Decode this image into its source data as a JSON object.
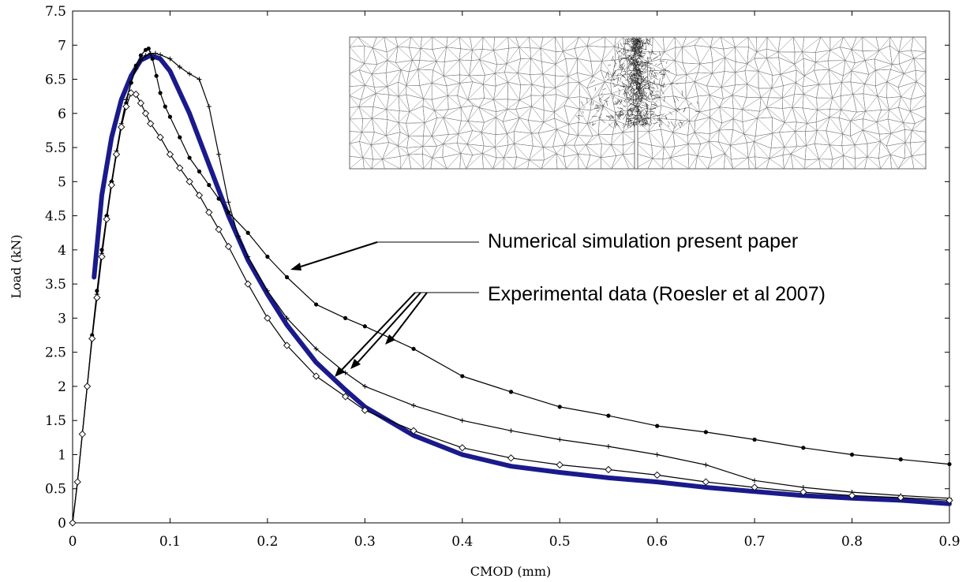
{
  "chart_data": {
    "type": "line",
    "xlabel": "CMOD (mm)",
    "ylabel": "Load (kN)",
    "xlim": [
      0,
      0.9
    ],
    "ylim": [
      0,
      7.5
    ],
    "x_ticks": [
      "0",
      "0.1",
      "0.2",
      "0.3",
      "0.4",
      "0.5",
      "0.6",
      "0.7",
      "0.8",
      "0.9"
    ],
    "y_ticks": [
      "0",
      "0.5",
      "1",
      "1.5",
      "2",
      "2.5",
      "3",
      "3.5",
      "4",
      "4.5",
      "5",
      "5.5",
      "6",
      "6.5",
      "7",
      "7.5"
    ],
    "grid": false,
    "annotations": [
      {
        "text": "Numerical simulation present paper"
      },
      {
        "text": "Experimental data (Roesler et al 2007)"
      }
    ],
    "inset": {
      "description_visible": "mesh",
      "shown": true
    },
    "series": [
      {
        "style": "thick",
        "color": "#1a1a8c",
        "marker": "none",
        "x": [
          0.022,
          0.03,
          0.04,
          0.05,
          0.06,
          0.07,
          0.08,
          0.09,
          0.1,
          0.12,
          0.14,
          0.16,
          0.18,
          0.2,
          0.22,
          0.25,
          0.28,
          0.3,
          0.35,
          0.4,
          0.45,
          0.5,
          0.55,
          0.6,
          0.65,
          0.7,
          0.75,
          0.8,
          0.85,
          0.9
        ],
        "y": [
          3.6,
          4.8,
          5.65,
          6.2,
          6.55,
          6.78,
          6.85,
          6.8,
          6.62,
          6.0,
          5.25,
          4.5,
          3.85,
          3.35,
          2.9,
          2.35,
          1.95,
          1.7,
          1.28,
          1.0,
          0.83,
          0.74,
          0.66,
          0.6,
          0.52,
          0.46,
          0.4,
          0.36,
          0.33,
          0.28
        ]
      },
      {
        "style": "thin",
        "color": "#000000",
        "marker": "dot",
        "x": [
          0,
          0.005,
          0.01,
          0.015,
          0.02,
          0.025,
          0.03,
          0.035,
          0.04,
          0.045,
          0.05,
          0.055,
          0.06,
          0.065,
          0.07,
          0.075,
          0.078,
          0.082,
          0.086,
          0.09,
          0.095,
          0.1,
          0.11,
          0.12,
          0.13,
          0.14,
          0.15,
          0.16,
          0.18,
          0.2,
          0.22,
          0.25,
          0.28,
          0.3,
          0.35,
          0.4,
          0.45,
          0.5,
          0.55,
          0.6,
          0.65,
          0.7,
          0.75,
          0.8,
          0.85,
          0.9
        ],
        "y": [
          0,
          0.6,
          1.3,
          2.0,
          2.75,
          3.4,
          4.0,
          4.5,
          5.0,
          5.4,
          5.8,
          6.15,
          6.45,
          6.7,
          6.85,
          6.93,
          6.95,
          6.8,
          6.55,
          6.3,
          6.1,
          5.95,
          5.65,
          5.35,
          5.15,
          4.95,
          4.75,
          4.55,
          4.25,
          3.9,
          3.6,
          3.2,
          3.0,
          2.88,
          2.55,
          2.15,
          1.92,
          1.7,
          1.57,
          1.42,
          1.33,
          1.22,
          1.1,
          1.0,
          0.93,
          0.86
        ]
      },
      {
        "style": "thin",
        "color": "#000000",
        "marker": "plus",
        "x": [
          0,
          0.005,
          0.01,
          0.015,
          0.02,
          0.025,
          0.03,
          0.035,
          0.04,
          0.045,
          0.05,
          0.055,
          0.06,
          0.065,
          0.07,
          0.075,
          0.08,
          0.085,
          0.09,
          0.1,
          0.11,
          0.12,
          0.13,
          0.14,
          0.15,
          0.16,
          0.17,
          0.18,
          0.2,
          0.22,
          0.25,
          0.28,
          0.3,
          0.35,
          0.4,
          0.45,
          0.5,
          0.55,
          0.6,
          0.65,
          0.7,
          0.75,
          0.8,
          0.85,
          0.9
        ],
        "y": [
          0,
          0.6,
          1.3,
          2.0,
          2.7,
          3.35,
          3.95,
          4.5,
          5.0,
          5.45,
          5.85,
          6.2,
          6.45,
          6.65,
          6.78,
          6.85,
          6.88,
          6.88,
          6.86,
          6.8,
          6.68,
          6.58,
          6.5,
          6.1,
          5.4,
          4.7,
          4.2,
          3.9,
          3.4,
          3.0,
          2.55,
          2.2,
          2.0,
          1.72,
          1.5,
          1.35,
          1.22,
          1.12,
          1.0,
          0.85,
          0.62,
          0.52,
          0.45,
          0.4,
          0.36
        ]
      },
      {
        "style": "thin",
        "color": "#000000",
        "marker": "diamond",
        "x": [
          0,
          0.005,
          0.01,
          0.015,
          0.02,
          0.025,
          0.03,
          0.035,
          0.04,
          0.045,
          0.05,
          0.055,
          0.06,
          0.065,
          0.07,
          0.075,
          0.08,
          0.09,
          0.1,
          0.11,
          0.12,
          0.13,
          0.14,
          0.15,
          0.16,
          0.18,
          0.2,
          0.22,
          0.25,
          0.28,
          0.3,
          0.35,
          0.4,
          0.45,
          0.5,
          0.55,
          0.6,
          0.65,
          0.7,
          0.75,
          0.8,
          0.85,
          0.9
        ],
        "y": [
          0,
          0.6,
          1.3,
          2.0,
          2.7,
          3.3,
          3.9,
          4.45,
          4.95,
          5.4,
          5.8,
          6.1,
          6.3,
          6.28,
          6.15,
          6.0,
          5.85,
          5.65,
          5.4,
          5.2,
          5.0,
          4.8,
          4.55,
          4.3,
          4.05,
          3.5,
          3.0,
          2.6,
          2.15,
          1.85,
          1.65,
          1.35,
          1.1,
          0.95,
          0.85,
          0.78,
          0.7,
          0.6,
          0.52,
          0.45,
          0.4,
          0.37,
          0.33
        ]
      }
    ]
  }
}
